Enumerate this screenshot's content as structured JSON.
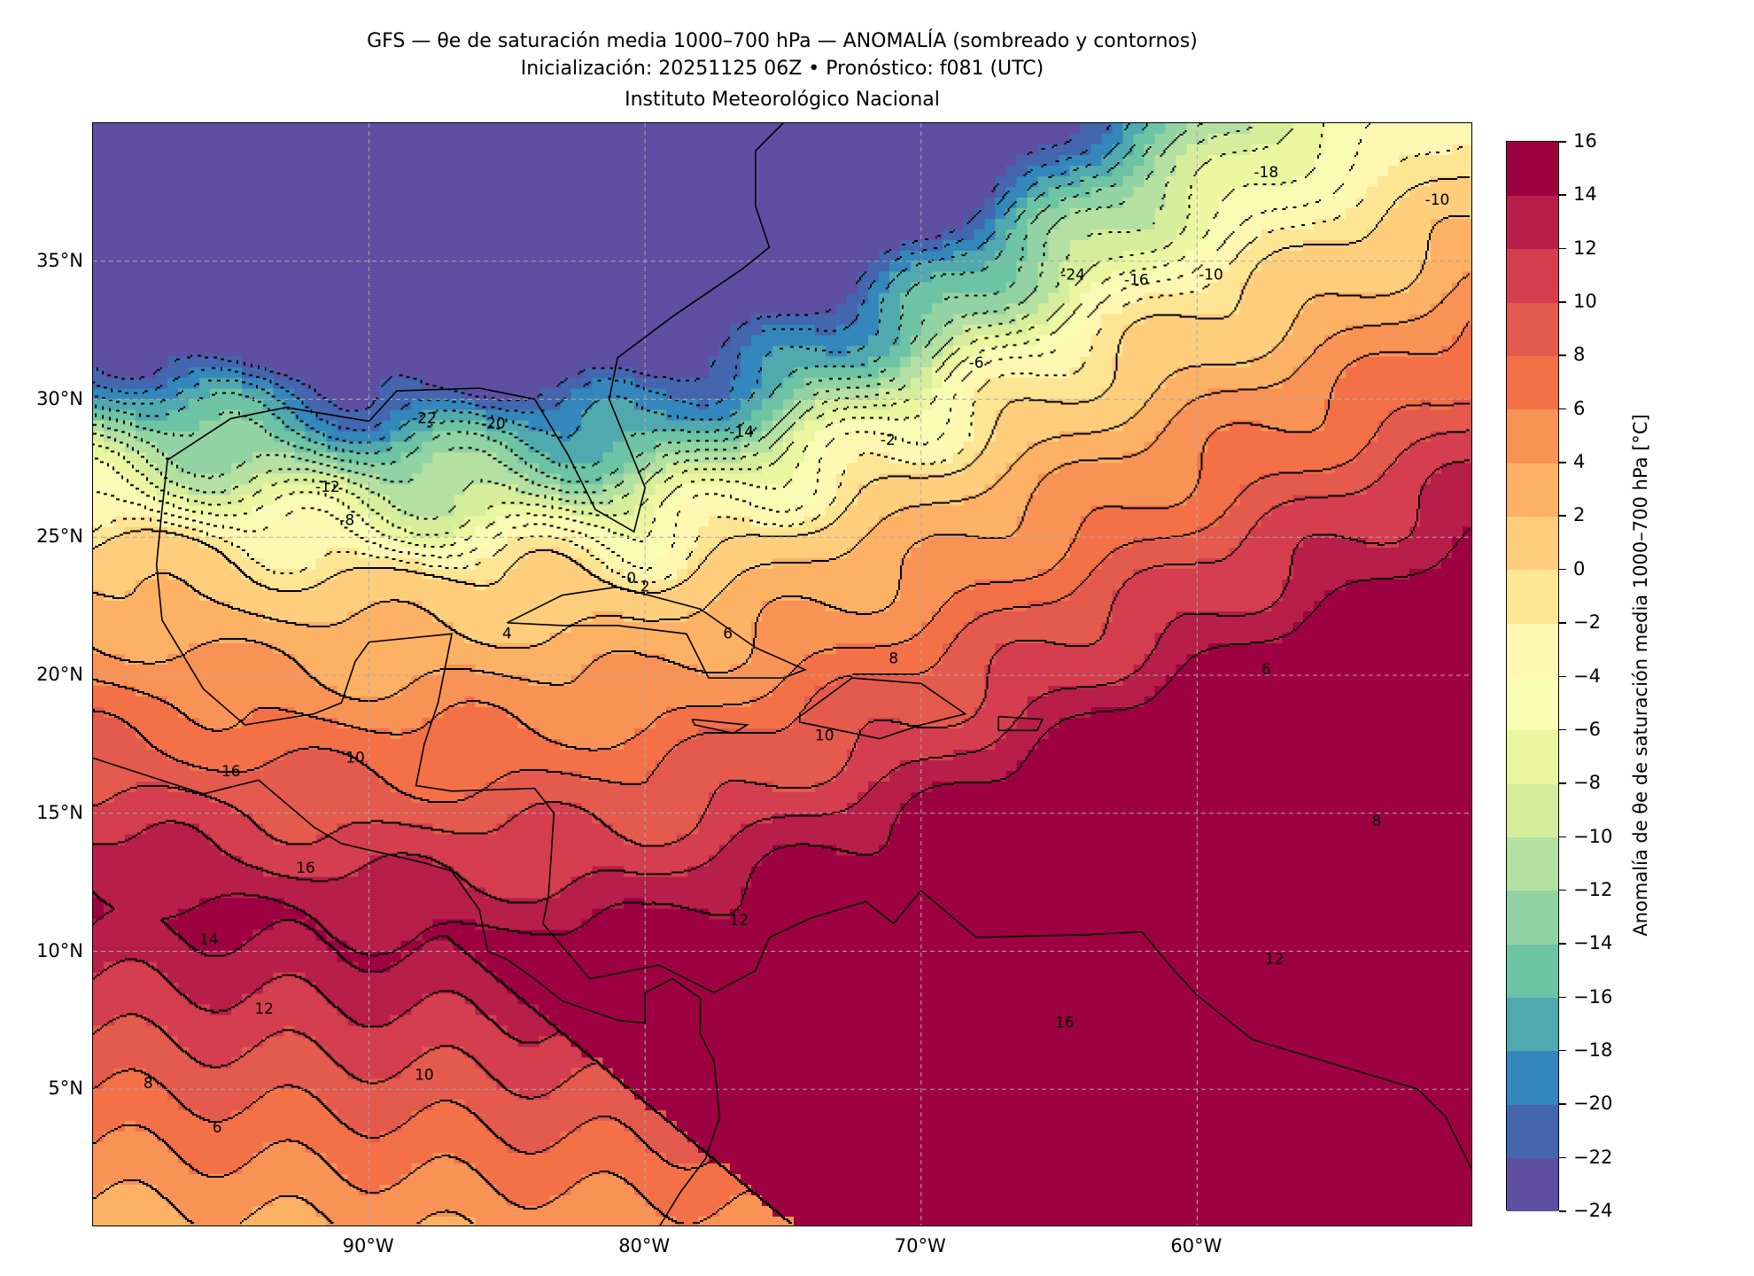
{
  "title": {
    "line1": "GFS — θe de saturación media 1000–700 hPa — ANOMALÍA (sombreado y contornos)",
    "line2": "Inicialización: 20251125 06Z   •   Pronóstico: f081 (UTC)",
    "line3": "Instituto Meteorológico Nacional"
  },
  "map": {
    "lon_range": [
      -100,
      -50
    ],
    "lat_range": [
      0,
      40
    ],
    "lon_ticks": [
      -90,
      -80,
      -70,
      -60
    ],
    "lon_labels": [
      "90°W",
      "80°W",
      "70°W",
      "60°W"
    ],
    "lat_ticks": [
      5,
      10,
      15,
      20,
      25,
      30,
      35
    ],
    "lat_labels": [
      "5°N",
      "10°N",
      "15°N",
      "20°N",
      "25°N",
      "30°N",
      "35°N"
    ],
    "contour_interval": 2,
    "contour_labels": [
      "-22",
      "-20",
      "-14",
      "-12",
      "-8",
      "-24",
      "-16",
      "-10",
      "-6",
      "-2",
      "0",
      "2",
      "4",
      "6",
      "8",
      "10",
      "10",
      "16",
      "14",
      "12",
      "10",
      "8",
      "6",
      "6",
      "8",
      "12",
      "12",
      "16",
      "16",
      "-10",
      "-18"
    ]
  },
  "colorbar": {
    "label": "Anomalía de θe de saturación media 1000–700 hPa [°C]",
    "levels": [
      -24,
      -22,
      -20,
      -18,
      -16,
      -14,
      -12,
      -10,
      -8,
      -6,
      -4,
      -2,
      0,
      2,
      4,
      6,
      8,
      10,
      12,
      14,
      16
    ],
    "tick_labels": [
      "−24",
      "−22",
      "−20",
      "−18",
      "−16",
      "−14",
      "−12",
      "−10",
      "−8",
      "−6",
      "−4",
      "−2",
      "0",
      "2",
      "4",
      "6",
      "8",
      "10",
      "12",
      "14",
      "16"
    ],
    "colors": [
      "#5e4fa2",
      "#4366af",
      "#3387bc",
      "#50a9af",
      "#6cc4a4",
      "#92d3a3",
      "#b4e0a2",
      "#d6ee9b",
      "#ebf7a0",
      "#f9fcb5",
      "#fff7b2",
      "#fee593",
      "#fece7c",
      "#fdb164",
      "#f99355",
      "#f47148",
      "#e45a4d",
      "#d53e4f",
      "#b81e4a",
      "#9e0142"
    ]
  }
}
